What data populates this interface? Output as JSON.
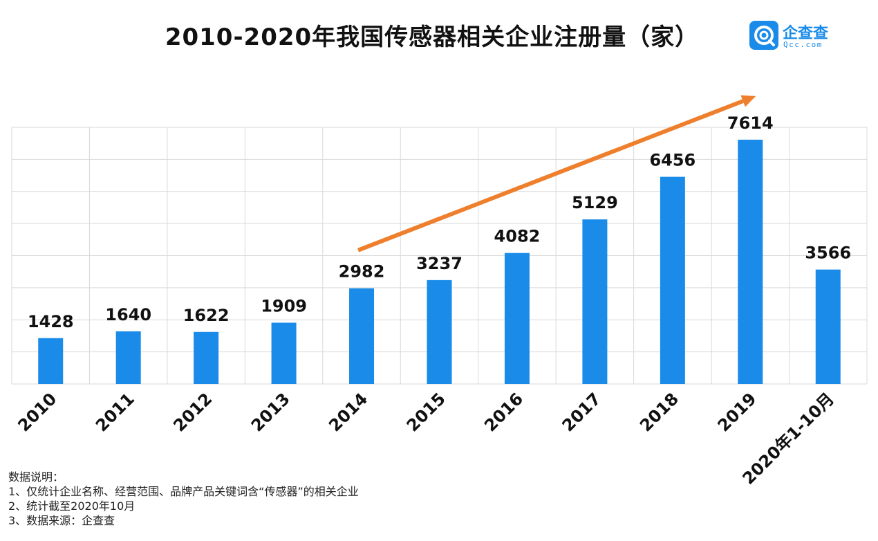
{
  "title": "2010-2020年我国传感器相关企业注册量（家）",
  "logo": {
    "name_cn": "企查查",
    "name_en": "Qcc.com"
  },
  "notes": {
    "heading": "数据说明：",
    "lines": [
      "1、仅统计企业名称、经营范围、品牌产品关键词含“传感器”的相关企业",
      "2、统计截至2020年10月",
      "3、数据来源：企查查"
    ]
  },
  "colors": {
    "bar": "#1a8be8",
    "arrow": "#ee7f2d",
    "grid": "#d9d9d9"
  },
  "chart_data": {
    "type": "bar",
    "categories": [
      "2010",
      "2011",
      "2012",
      "2013",
      "2014",
      "2015",
      "2016",
      "2017",
      "2018",
      "2019",
      "2020年1-10月"
    ],
    "values": [
      1428,
      1640,
      1622,
      1909,
      2982,
      3237,
      4082,
      5129,
      6456,
      7614,
      3566
    ],
    "ylim": [
      0,
      8000
    ],
    "grid": true,
    "annotations": [
      {
        "type": "trend-arrow",
        "from_category": "2014",
        "to_category": "2019"
      }
    ]
  }
}
